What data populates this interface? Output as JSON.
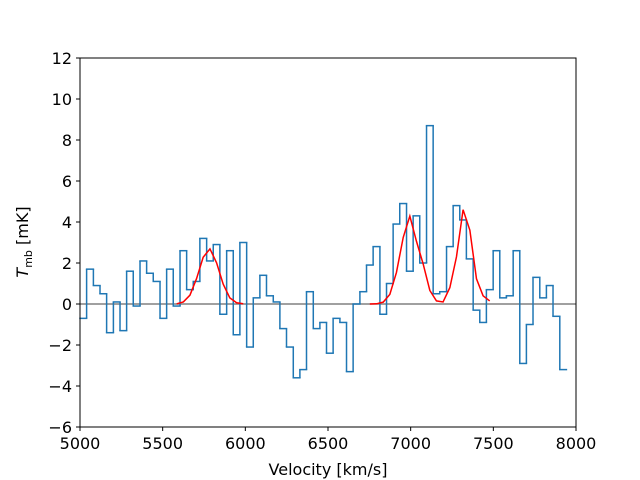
{
  "chart_data": {
    "type": "histogram",
    "xlabel": "Velocity [km/s]",
    "ylabel": {
      "symbol": "T",
      "subscript": "mb",
      "unit": "[mK]"
    },
    "xlim": [
      5000,
      8000
    ],
    "ylim": [
      -6,
      12
    ],
    "xticks": [
      5000,
      5500,
      6000,
      6500,
      7000,
      7500,
      8000
    ],
    "yticks": [
      {
        "value": -6,
        "label": "−6"
      },
      {
        "value": -4,
        "label": "−4"
      },
      {
        "value": -2,
        "label": "−2"
      },
      0,
      2,
      4,
      6,
      8,
      10,
      12
    ],
    "color": "#1f77b4",
    "bins": [
      5000,
      5040,
      5081,
      5121,
      5161,
      5202,
      5242,
      5282,
      5322,
      5363,
      5403,
      5443,
      5484,
      5524,
      5564,
      5605,
      5645,
      5685,
      5725,
      5766,
      5806,
      5846,
      5887,
      5927,
      5967,
      6008,
      6048,
      6088,
      6128,
      6169,
      6209,
      6249,
      6290,
      6330,
      6370,
      6411,
      6451,
      6491,
      6531,
      6572,
      6612,
      6652,
      6693,
      6733,
      6773,
      6814,
      6854,
      6894,
      6934,
      6975,
      7015,
      7055,
      7096,
      7136,
      7176,
      7217,
      7257,
      7297,
      7337,
      7378,
      7418,
      7458,
      7499,
      7539,
      7579,
      7620,
      7660,
      7700,
      7740,
      7781,
      7821,
      7861,
      7902,
      7942
    ],
    "values": [
      -0.7,
      1.7,
      0.9,
      0.5,
      -1.4,
      0.1,
      -1.3,
      1.6,
      -0.1,
      2.1,
      1.5,
      1.1,
      -0.7,
      1.7,
      -0.1,
      2.6,
      0.7,
      1.1,
      3.2,
      2.1,
      2.9,
      -0.5,
      2.6,
      -1.5,
      3.0,
      -2.1,
      0.3,
      1.4,
      0.4,
      0.1,
      -1.2,
      -2.1,
      -3.6,
      -3.2,
      0.6,
      -1.2,
      -0.9,
      -2.4,
      -0.7,
      -0.9,
      -3.3,
      0.0,
      0.6,
      1.9,
      2.8,
      -0.5,
      1.0,
      3.9,
      4.9,
      1.6,
      4.3,
      2.0,
      8.7,
      0.5,
      0.6,
      2.8,
      4.8,
      4.1,
      2.2,
      -0.3,
      -0.9,
      0.7,
      2.6,
      0.3,
      0.4,
      2.6,
      -2.9,
      -1.0,
      1.3,
      0.3,
      0.9,
      -0.6,
      -3.2
    ],
    "fit": {
      "type": "line",
      "color": "#ff0000",
      "x": [
        5585,
        5625,
        5665,
        5705,
        5745,
        5786,
        5826,
        5866,
        5906,
        5947,
        5987,
        6370,
        6753,
        6794,
        6834,
        6874,
        6914,
        6955,
        6995,
        7035,
        7075,
        7116,
        7156,
        7196,
        7237,
        7277,
        7317,
        7358,
        7398,
        7438,
        7478
      ],
      "values": [
        0.01,
        0.1,
        0.43,
        1.24,
        2.28,
        2.69,
        2.01,
        0.97,
        0.3,
        0.06,
        0.01,
        null,
        0.0,
        0.01,
        0.09,
        0.47,
        1.54,
        3.25,
        4.29,
        3.06,
        1.97,
        0.66,
        0.15,
        0.1,
        0.8,
        2.3,
        4.6,
        3.6,
        1.23,
        0.4,
        0.15
      ]
    },
    "hlines": [
      {
        "y": 0,
        "color": "#808080"
      }
    ]
  }
}
